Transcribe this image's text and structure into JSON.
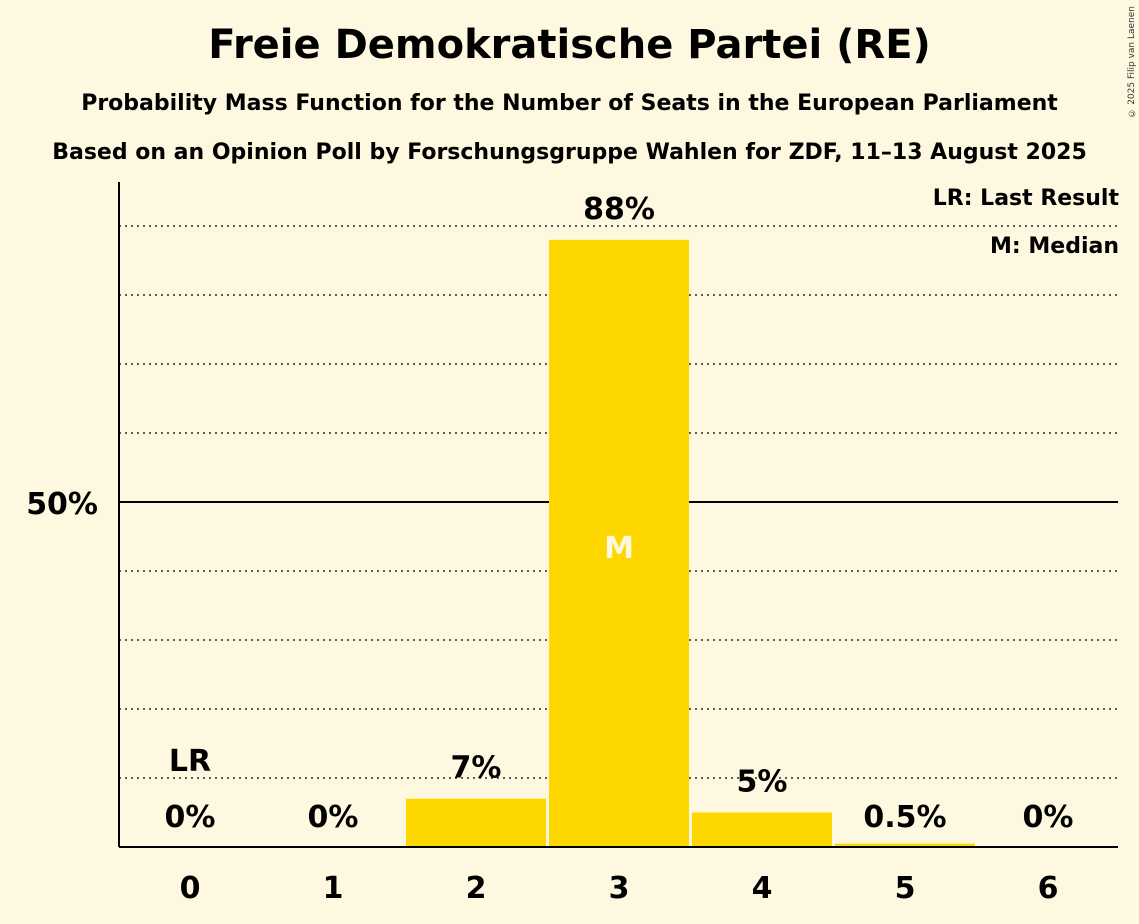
{
  "header": {
    "title": "Freie Demokratische Partei (RE)",
    "subtitle": "Probability Mass Function for the Number of Seats in the European Parliament",
    "source": "Based on an Opinion Poll by Forschungsgruppe Wahlen for ZDF, 11–13 August 2025",
    "copyright": "© 2025 Filip van Laenen"
  },
  "legend": {
    "last_result": "LR: Last Result",
    "median": "M: Median"
  },
  "chart_data": {
    "type": "bar",
    "categories": [
      "0",
      "1",
      "2",
      "3",
      "4",
      "5",
      "6"
    ],
    "values": [
      0,
      0,
      7,
      88,
      5,
      0.5,
      0
    ],
    "data_labels": [
      "0%",
      "0%",
      "7%",
      "88%",
      "5%",
      "0.5%",
      "0%"
    ],
    "ylim": [
      0,
      96
    ],
    "y_tick_label": "50%",
    "y_tick_value": 50,
    "grid": "dotted every 10%",
    "last_result_index": 0,
    "last_result_label": "LR",
    "median_index": 3,
    "median_label": "M",
    "bar_color": "#ffd700",
    "median_text_color": "#fff8e1"
  }
}
